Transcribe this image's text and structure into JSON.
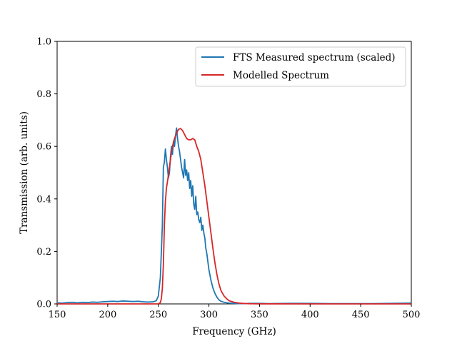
{
  "chart_data": {
    "type": "line",
    "xlabel": "Frequency (GHz)",
    "ylabel": "Transmission (arb. units)",
    "xlim": [
      150,
      500
    ],
    "ylim": [
      0.0,
      1.0
    ],
    "xticks": [
      150,
      200,
      250,
      300,
      350,
      400,
      450,
      500
    ],
    "yticks": [
      0.0,
      0.2,
      0.4,
      0.6,
      0.8,
      1.0
    ],
    "xtick_labels": [
      "150",
      "200",
      "250",
      "300",
      "350",
      "400",
      "450",
      "500"
    ],
    "ytick_labels": [
      "0.0",
      "0.2",
      "0.4",
      "0.6",
      "0.8",
      "1.0"
    ],
    "grid": false,
    "legend_position": "top-right",
    "series": [
      {
        "name": "FTS Measured spectrum (scaled)",
        "color": "#1f77b4",
        "x": [
          150,
          155,
          160,
          165,
          170,
          175,
          180,
          185,
          190,
          195,
          200,
          205,
          210,
          215,
          220,
          225,
          230,
          235,
          240,
          245,
          248,
          250,
          252,
          254,
          255,
          256,
          257,
          258,
          259,
          260,
          261,
          262,
          263,
          264,
          265,
          266,
          267,
          268,
          269,
          270,
          271,
          272,
          273,
          274,
          275,
          276,
          277,
          278,
          279,
          280,
          281,
          282,
          283,
          284,
          285,
          286,
          287,
          288,
          289,
          290,
          291,
          292,
          293,
          294,
          295,
          296,
          297,
          298,
          299,
          300,
          302,
          304,
          306,
          308,
          310,
          312,
          315,
          318,
          320,
          325,
          330,
          335,
          340,
          350,
          360,
          380,
          400,
          420,
          440,
          460,
          480,
          500
        ],
        "y": [
          0.004,
          0.003,
          0.005,
          0.006,
          0.004,
          0.006,
          0.005,
          0.007,
          0.006,
          0.008,
          0.009,
          0.01,
          0.009,
          0.011,
          0.01,
          0.009,
          0.01,
          0.008,
          0.007,
          0.008,
          0.012,
          0.03,
          0.1,
          0.3,
          0.52,
          0.54,
          0.59,
          0.55,
          0.52,
          0.48,
          0.5,
          0.56,
          0.6,
          0.57,
          0.62,
          0.6,
          0.64,
          0.67,
          0.63,
          0.6,
          0.58,
          0.55,
          0.52,
          0.5,
          0.48,
          0.55,
          0.49,
          0.51,
          0.47,
          0.5,
          0.44,
          0.47,
          0.41,
          0.45,
          0.38,
          0.36,
          0.41,
          0.34,
          0.35,
          0.32,
          0.31,
          0.33,
          0.28,
          0.3,
          0.27,
          0.25,
          0.21,
          0.19,
          0.16,
          0.13,
          0.09,
          0.06,
          0.04,
          0.025,
          0.015,
          0.01,
          0.006,
          0.004,
          0.003,
          0.002,
          0.001,
          0.001,
          0.002,
          0.002,
          0.001,
          0.002,
          0.002,
          0.001,
          0.001,
          0.001,
          0.002,
          0.003
        ]
      },
      {
        "name": "Modelled Spectrum",
        "color": "#d62728",
        "x": [
          150,
          200,
          250,
          252,
          253,
          254,
          255,
          256,
          257,
          258,
          260,
          262,
          264,
          266,
          268,
          270,
          272,
          274,
          276,
          278,
          280,
          282,
          284,
          286,
          288,
          290,
          292,
          294,
          296,
          298,
          300,
          302,
          304,
          306,
          308,
          310,
          312,
          315,
          318,
          320,
          325,
          330,
          335,
          340,
          345,
          350,
          400,
          450,
          500
        ],
        "y": [
          0.0,
          0.0,
          0.0,
          0.005,
          0.02,
          0.06,
          0.15,
          0.3,
          0.39,
          0.44,
          0.49,
          0.55,
          0.6,
          0.63,
          0.65,
          0.665,
          0.668,
          0.66,
          0.645,
          0.63,
          0.625,
          0.625,
          0.63,
          0.625,
          0.6,
          0.58,
          0.55,
          0.5,
          0.45,
          0.39,
          0.33,
          0.27,
          0.21,
          0.155,
          0.11,
          0.075,
          0.05,
          0.03,
          0.018,
          0.012,
          0.006,
          0.003,
          0.0015,
          0.0008,
          0.0004,
          0.0002,
          0.0,
          0.0,
          0.0
        ]
      }
    ]
  }
}
